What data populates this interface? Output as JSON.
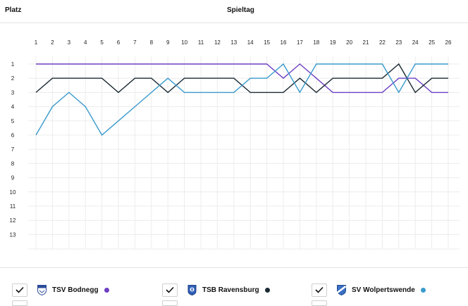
{
  "header": {
    "rank_label": "Platz",
    "matchday_label": "Spieltag"
  },
  "chart_data": {
    "type": "line",
    "xlabel": "Spieltag",
    "ylabel": "Platz",
    "x": [
      1,
      2,
      3,
      4,
      5,
      6,
      7,
      8,
      9,
      10,
      11,
      12,
      13,
      14,
      15,
      16,
      17,
      18,
      19,
      20,
      21,
      22,
      23,
      24,
      25,
      26
    ],
    "y_ticks": [
      1,
      2,
      3,
      4,
      5,
      6,
      7,
      8,
      9,
      10,
      11,
      12,
      13
    ],
    "ylim": [
      1,
      13.7
    ],
    "y_inverted": true,
    "grid": true,
    "series": [
      {
        "name": "TSV Bodnegg",
        "color": "#6d3fc4",
        "values": [
          1,
          1,
          1,
          1,
          1,
          1,
          1,
          1,
          1,
          1,
          1,
          1,
          1,
          1,
          1,
          2,
          1,
          2,
          3,
          3,
          3,
          3,
          2,
          2,
          3,
          3
        ]
      },
      {
        "name": "TSB Ravensburg",
        "color": "#1b2a33",
        "values": [
          3,
          2,
          2,
          2,
          2,
          3,
          2,
          2,
          3,
          2,
          2,
          2,
          2,
          3,
          3,
          3,
          2,
          3,
          2,
          2,
          2,
          2,
          1,
          3,
          2,
          2
        ]
      },
      {
        "name": "SV Wolpertswende",
        "color": "#3a9acc",
        "values": [
          6,
          4,
          3,
          4,
          6,
          5,
          4,
          3,
          2,
          3,
          3,
          3,
          3,
          2,
          2,
          1,
          3,
          1,
          1,
          1,
          1,
          1,
          3,
          1,
          1,
          1
        ]
      }
    ]
  },
  "legend": [
    {
      "name": "TSV Bodnegg",
      "color": "#6d3fc4",
      "crest_icon": "tsv-bodnegg-crest-icon",
      "checked": true
    },
    {
      "name": "TSB Ravensburg",
      "color": "#1b2a33",
      "crest_icon": "tsb-ravensburg-crest-icon",
      "checked": true
    },
    {
      "name": "SV Wolpertswende",
      "color": "#3a9acc",
      "crest_icon": "sv-wolpertswende-crest-icon",
      "checked": true
    }
  ]
}
